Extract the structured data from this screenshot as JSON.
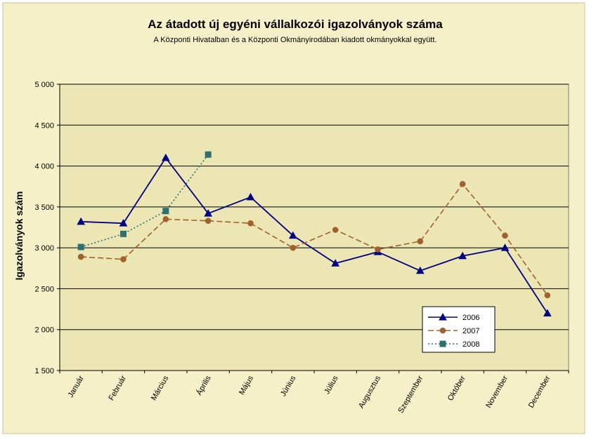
{
  "chart_data": {
    "type": "line",
    "title": "Az átadott új egyéni vállalkozói  igazolványok száma",
    "subtitle": "A Központi Hivatalban és a Központi Okmányirodában kiadott okmányokkal együtt.",
    "ylabel": "Igazolványok szám",
    "xlabel": "",
    "ylim": [
      1500,
      5000
    ],
    "yticks": [
      1500,
      2000,
      2500,
      3000,
      3500,
      4000,
      4500,
      5000
    ],
    "ytick_labels": [
      "1 500",
      "2 000",
      "2 500",
      "3 000",
      "3 500",
      "4 000",
      "4 500",
      "5 000"
    ],
    "categories": [
      "Január",
      "Február",
      "Március",
      "Április",
      "Május",
      "Június",
      "Július",
      "Augusztus",
      "Szeptember",
      "Október",
      "November",
      "December"
    ],
    "grid": "horizontal",
    "legend_position": "bottom-right",
    "series": [
      {
        "name": "2006",
        "color": "#000080",
        "marker": "triangle",
        "line_style": "solid",
        "values": [
          3320,
          3300,
          4100,
          3420,
          3620,
          3150,
          2810,
          2950,
          2720,
          2900,
          3000,
          2200
        ]
      },
      {
        "name": "2007",
        "color": "#A0622D",
        "marker": "circle",
        "line_style": "dashed",
        "values": [
          2890,
          2860,
          3350,
          3330,
          3300,
          3000,
          3220,
          2980,
          3080,
          3780,
          3150,
          2420
        ]
      },
      {
        "name": "2008",
        "color": "#2F6F6F",
        "marker": "square",
        "line_style": "dotted",
        "values": [
          3010,
          3170,
          3450,
          4140,
          null,
          null,
          null,
          null,
          null,
          null,
          null,
          null
        ]
      }
    ]
  },
  "colors": {
    "background": "#F5F0C8",
    "plot_background": "#EBE6B4",
    "gridline": "#000000",
    "frame": "#808080"
  }
}
